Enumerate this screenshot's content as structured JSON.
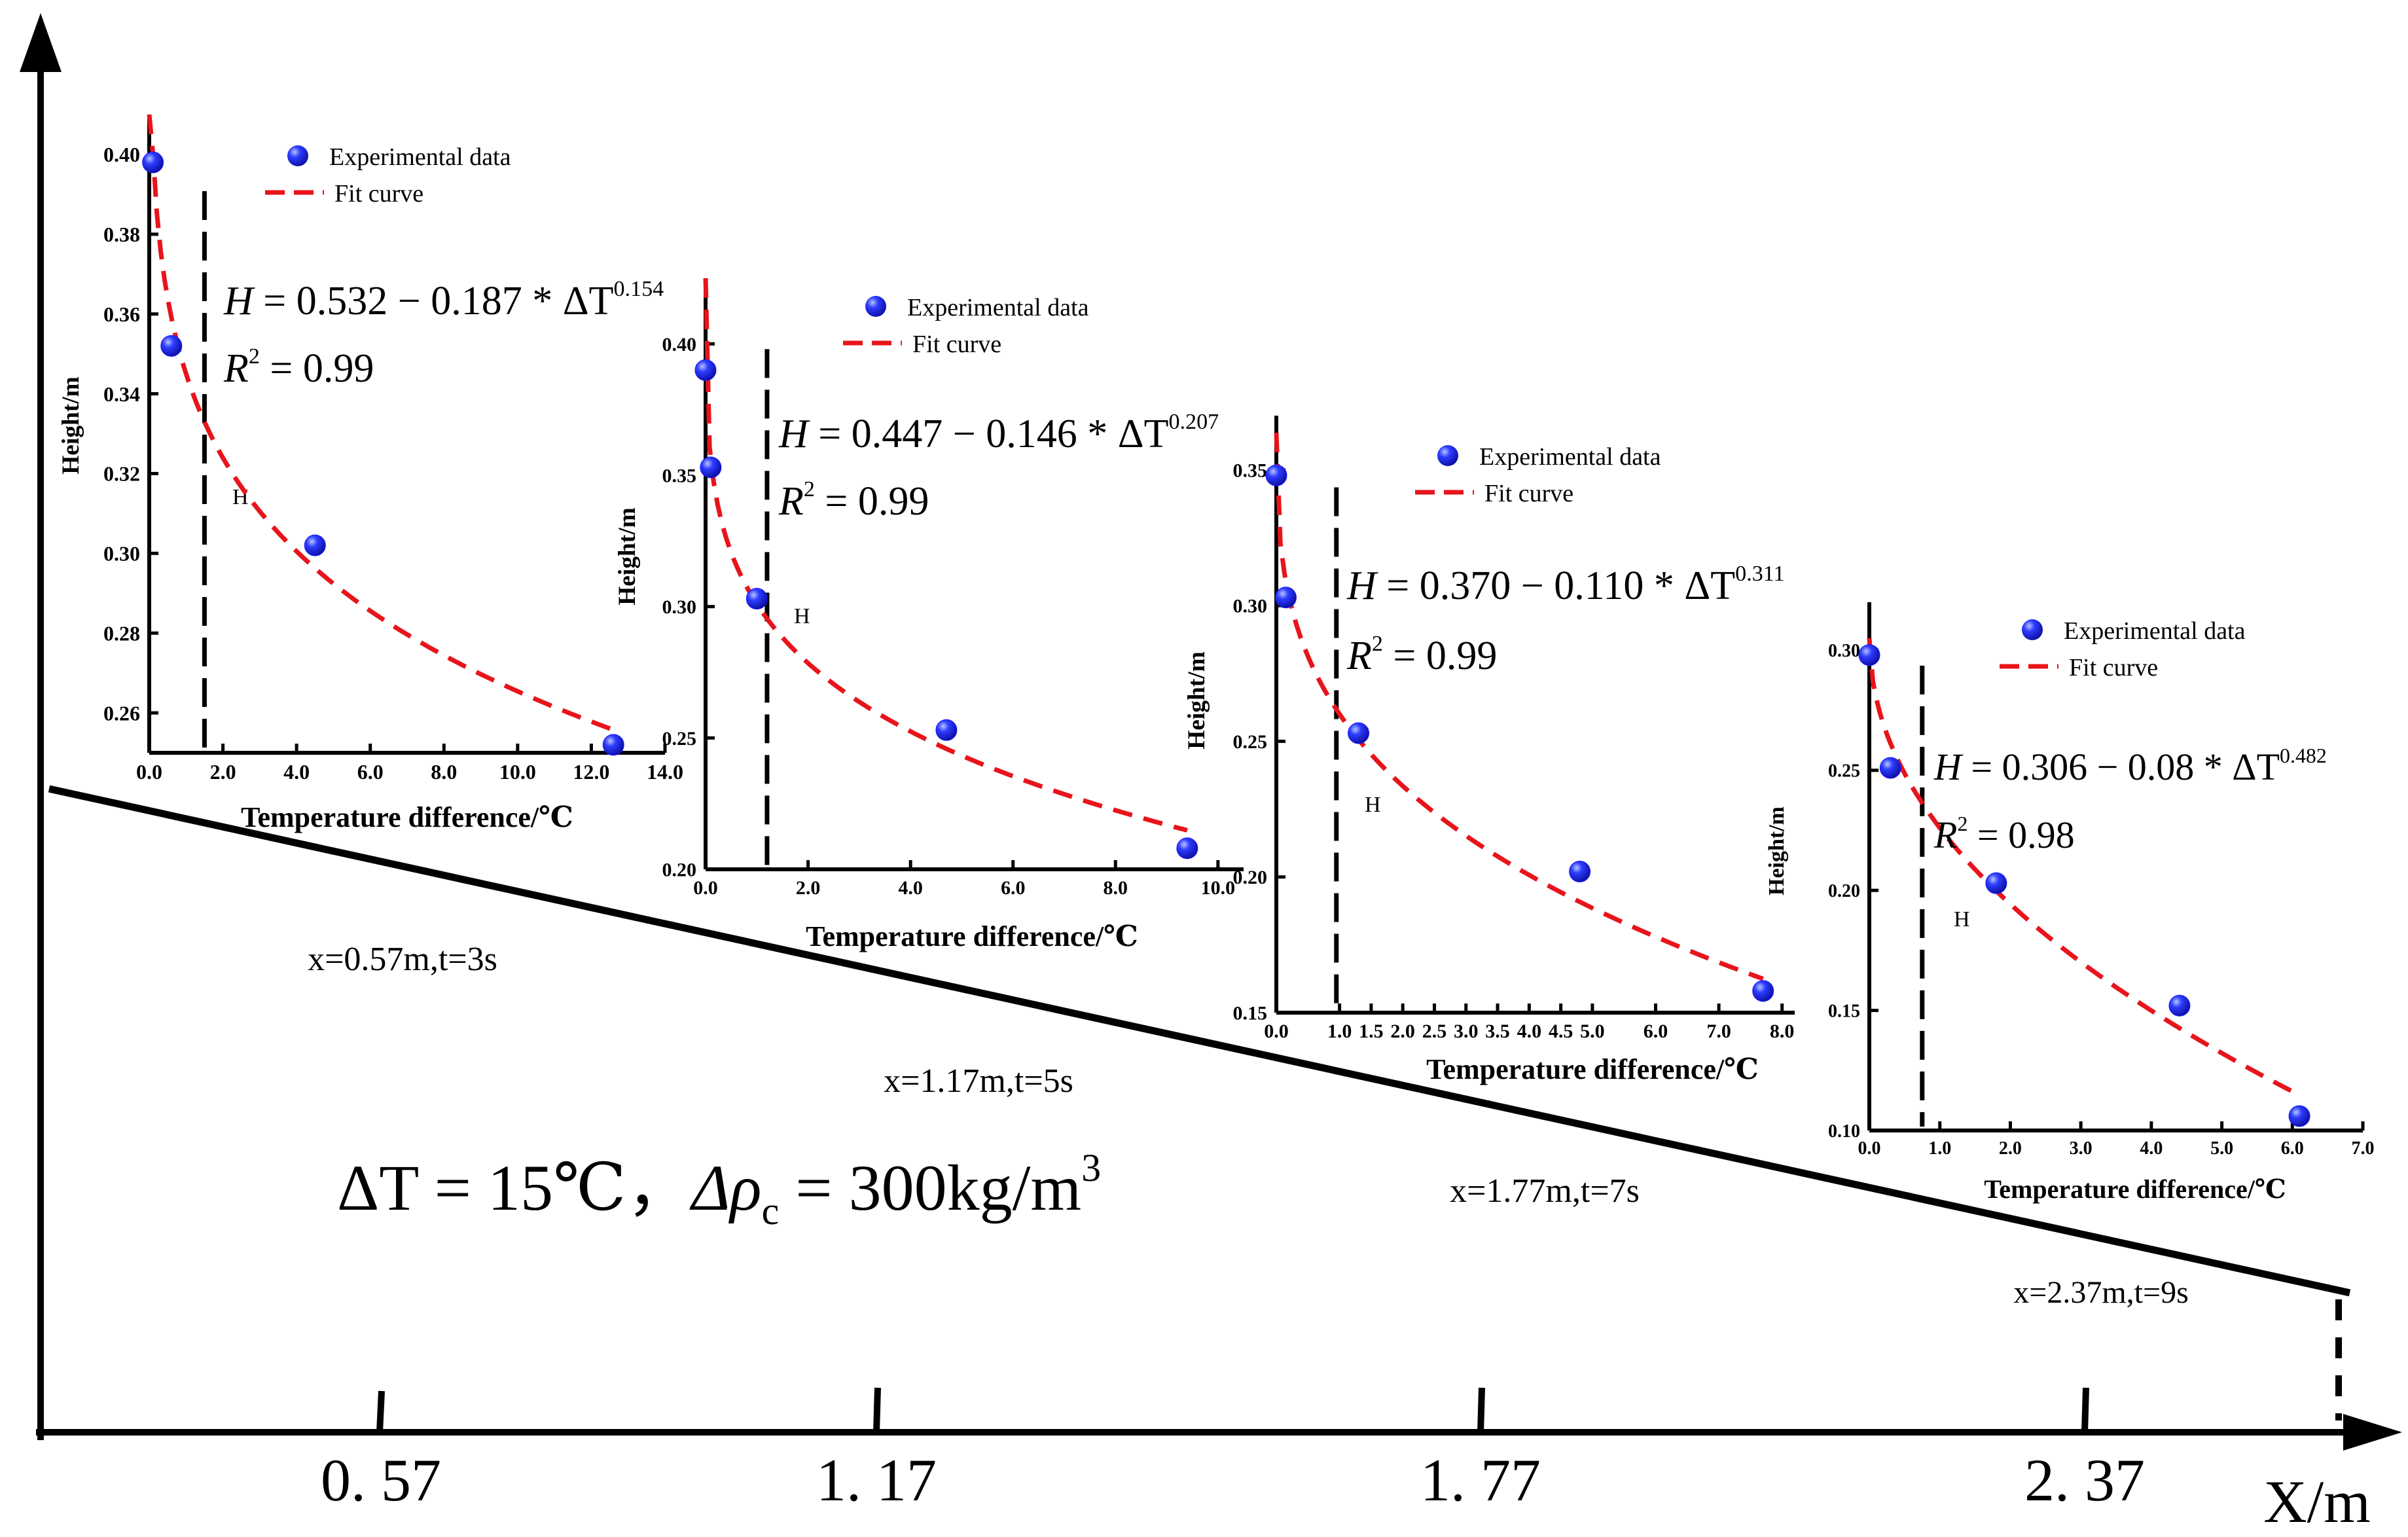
{
  "figure": {
    "x_axis_label": "X/m",
    "x_ticks": [
      "0. 57",
      "1. 17",
      "1. 77",
      "2. 37"
    ],
    "condition": {
      "delta_T": "ΔT = 15℃，",
      "delta_rho": "Δρ",
      "delta_rho_sub": "c",
      "delta_rho_value": " = 300kg/m",
      "delta_rho_unit_exp": "3"
    },
    "colors": {
      "points": "#1a1aff",
      "fit": "#e8141b",
      "axis": "#000000"
    }
  },
  "chart_data": [
    {
      "type": "scatter",
      "label": "x=0.57m,t=3s",
      "xlabel": "Temperature difference/℃",
      "ylabel": "Height/m",
      "xlim": [
        0,
        14
      ],
      "ylim": [
        0.25,
        0.41
      ],
      "xticks": [
        "0.0",
        "2.0",
        "4.0",
        "6.0",
        "8.0",
        "10.0",
        "12.0",
        "14.0"
      ],
      "yticks": [
        "0.26",
        "0.28",
        "0.30",
        "0.32",
        "0.34",
        "0.36",
        "0.38",
        "0.40"
      ],
      "xtick_values": [
        0,
        2,
        4,
        6,
        8,
        10,
        12,
        14
      ],
      "ytick_values": [
        0.26,
        0.28,
        0.3,
        0.32,
        0.34,
        0.36,
        0.38,
        0.4
      ],
      "points": [
        {
          "x": 0.1,
          "y": 0.398
        },
        {
          "x": 0.6,
          "y": 0.352
        },
        {
          "x": 4.5,
          "y": 0.302
        },
        {
          "x": 12.6,
          "y": 0.252
        }
      ],
      "fit": {
        "a": 0.532,
        "b": 0.187,
        "c": 0.154
      },
      "equation": {
        "lhs": "H",
        "main": " = 0.532 − 0.187 * ΔT",
        "exp": "0.154"
      },
      "r2": {
        "base": "R",
        "exp": "2",
        "value": " = 0.99"
      },
      "marker_label": "H",
      "marker_x": 1.5,
      "legend": {
        "points": "Experimental data",
        "fit": "Fit curve"
      }
    },
    {
      "type": "scatter",
      "label": "x=1.17m,t=5s",
      "xlabel": "Temperature difference/℃",
      "ylabel": "Height/m",
      "xlim": [
        0,
        10.5
      ],
      "ylim": [
        0.2,
        0.425
      ],
      "xticks": [
        "0.0",
        "2.0",
        "4.0",
        "6.0",
        "8.0",
        "10.0"
      ],
      "yticks": [
        "0.20",
        "0.25",
        "0.30",
        "0.35",
        "0.40"
      ],
      "xtick_values": [
        0,
        2,
        4,
        6,
        8,
        10
      ],
      "ytick_values": [
        0.2,
        0.25,
        0.3,
        0.35,
        0.4
      ],
      "points": [
        {
          "x": 0.0,
          "y": 0.39
        },
        {
          "x": 0.1,
          "y": 0.353
        },
        {
          "x": 1.0,
          "y": 0.303
        },
        {
          "x": 4.7,
          "y": 0.253
        },
        {
          "x": 9.4,
          "y": 0.208
        }
      ],
      "fit": {
        "a": 0.447,
        "b": 0.146,
        "c": 0.207
      },
      "equation": {
        "lhs": "H",
        "main": " = 0.447 − 0.146 * ΔT",
        "exp": "0.207"
      },
      "r2": {
        "base": "R",
        "exp": "2",
        "value": " = 0.99"
      },
      "marker_label": "H",
      "marker_x": 1.2,
      "legend": {
        "points": "Experimental data",
        "fit": "Fit curve"
      }
    },
    {
      "type": "scatter",
      "label": "x=1.77m,t=7s",
      "xlabel": "Temperature difference/℃",
      "ylabel": "Height/m",
      "xlim": [
        0,
        8.2
      ],
      "ylim": [
        0.15,
        0.37
      ],
      "xticks": [
        "0.0",
        "1.0",
        "1.5",
        "2.0",
        "2.5",
        "3.0",
        "3.5",
        "4.0",
        "4.5",
        "5.0",
        "6.0",
        "7.0",
        "8.0"
      ],
      "yticks": [
        "0.15",
        "0.20",
        "0.25",
        "0.30",
        "0.35"
      ],
      "xtick_values": [
        0,
        1,
        1.5,
        2,
        2.5,
        3,
        3.5,
        4,
        4.5,
        5,
        6,
        7,
        8
      ],
      "ytick_values": [
        0.15,
        0.2,
        0.25,
        0.3,
        0.35
      ],
      "points": [
        {
          "x": 0.0,
          "y": 0.348
        },
        {
          "x": 0.15,
          "y": 0.303
        },
        {
          "x": 1.3,
          "y": 0.253
        },
        {
          "x": 4.8,
          "y": 0.202
        },
        {
          "x": 7.7,
          "y": 0.158
        }
      ],
      "fit": {
        "a": 0.37,
        "b": 0.11,
        "c": 0.311
      },
      "equation": {
        "lhs": "H",
        "main": " = 0.370 − 0.110 * ΔT",
        "exp": "0.311"
      },
      "r2": {
        "base": "R",
        "exp": "2",
        "value": " = 0.99"
      },
      "marker_label": "H",
      "marker_x": 0.95,
      "legend": {
        "points": "Experimental data",
        "fit": "Fit curve"
      }
    },
    {
      "type": "scatter",
      "label": "x=2.37m,t=9s",
      "xlabel": "Temperature difference/℃",
      "ylabel": "Height/m",
      "xlim": [
        0,
        7
      ],
      "ylim": [
        0.1,
        0.32
      ],
      "xticks": [
        "0.0",
        "1.0",
        "2.0",
        "3.0",
        "4.0",
        "5.0",
        "6.0",
        "7.0"
      ],
      "yticks": [
        "0.10",
        "0.15",
        "0.20",
        "0.25",
        "0.30"
      ],
      "xtick_values": [
        0,
        1,
        2,
        3,
        4,
        5,
        6,
        7
      ],
      "ytick_values": [
        0.1,
        0.15,
        0.2,
        0.25,
        0.3
      ],
      "points": [
        {
          "x": 0.0,
          "y": 0.298
        },
        {
          "x": 0.3,
          "y": 0.251
        },
        {
          "x": 1.8,
          "y": 0.203
        },
        {
          "x": 4.4,
          "y": 0.152
        },
        {
          "x": 6.1,
          "y": 0.106
        }
      ],
      "fit": {
        "a": 0.306,
        "b": 0.08,
        "c": 0.482
      },
      "equation": {
        "lhs": "H",
        "main": " = 0.306 − 0.08 * ΔT",
        "exp": "0.482"
      },
      "r2": {
        "base": "R",
        "exp": "2",
        "value": " = 0.98"
      },
      "marker_label": "H",
      "marker_x": 0.75,
      "legend": {
        "points": "Experimental data",
        "fit": "Fit curve"
      }
    }
  ]
}
